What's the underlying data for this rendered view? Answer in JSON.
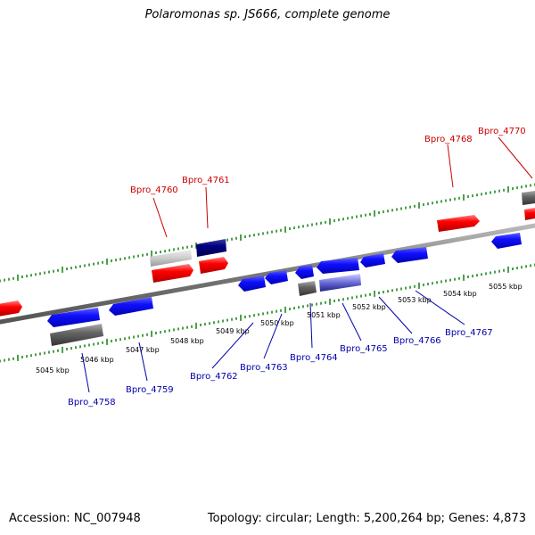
{
  "title": "Polaromonas sp. JS666, complete genome",
  "footer": {
    "accession": "Accession: NC_007948",
    "summary": "Topology: circular; Length: 5,200,264 bp; Genes: 4,873"
  },
  "colors": {
    "forward_gene": "#ff0000",
    "reverse_gene": "#0000ff",
    "dark_gene": "#000080",
    "pseudo_gene": "#555555",
    "light_gene": "#c8c8c8",
    "backbone": "#888888",
    "tick": "#007700",
    "forward_label": "#cc0000",
    "reverse_label": "#0000aa",
    "scale_label": "#000000"
  },
  "scale_labels": [
    "5045 kbp",
    "5046 kbp",
    "5047 kbp",
    "5048 kbp",
    "5049 kbp",
    "5050 kbp",
    "5051 kbp",
    "5052 kbp",
    "5053 kbp",
    "5054 kbp",
    "5055 kbp"
  ],
  "genes_top": [
    "Bpro_4760",
    "Bpro_4761",
    "Bpro_4768",
    "Bpro_4770"
  ],
  "genes_bottom": [
    "Bpro_4758",
    "Bpro_4759",
    "Bpro_4762",
    "Bpro_4763",
    "Bpro_4764",
    "Bpro_4765",
    "Bpro_4766",
    "Bpro_4767"
  ]
}
